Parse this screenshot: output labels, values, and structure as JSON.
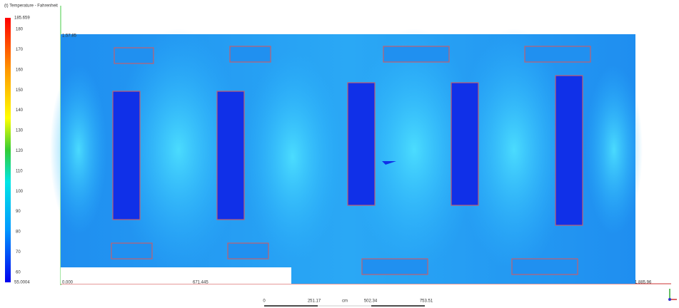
{
  "legend": {
    "title": "(t) Temperature - Fahrenheit",
    "max": 185.659,
    "min": 55.0004,
    "ticks": [
      180,
      170,
      160,
      150,
      140,
      130,
      120,
      110,
      100,
      90,
      80,
      70,
      60
    ]
  },
  "plot": {
    "corner_label": "1.57.85",
    "bottom_left": "0.000",
    "bottom_mid": "671.445",
    "bottom_right": "1.885.96"
  },
  "scale_bar": {
    "labels": [
      "0",
      "251.17",
      "cm",
      "502.34",
      "753.51"
    ]
  }
}
